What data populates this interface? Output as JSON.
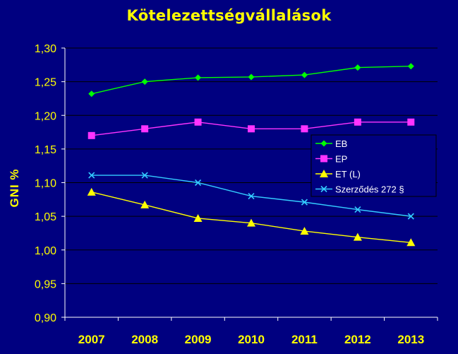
{
  "chart_data": {
    "type": "line",
    "title": "Kötelezettségvállalások",
    "xlabel": "",
    "ylabel": "GNI %",
    "x": [
      "2007",
      "2008",
      "2009",
      "2010",
      "2011",
      "2012",
      "2013"
    ],
    "y_ticks": [
      "0,90",
      "0,95",
      "1,00",
      "1,05",
      "1,10",
      "1,15",
      "1,20",
      "1,25",
      "1,30"
    ],
    "ylim": [
      0.9,
      1.3
    ],
    "grid": true,
    "legend_position": "right",
    "series": [
      {
        "name": "EB",
        "color": "#00ff00",
        "marker": "diamond",
        "values": [
          1.232,
          1.25,
          1.256,
          1.257,
          1.26,
          1.271,
          1.273
        ]
      },
      {
        "name": "EP",
        "color": "#ff33ff",
        "marker": "square",
        "values": [
          1.17,
          1.18,
          1.19,
          1.18,
          1.18,
          1.19,
          1.19
        ]
      },
      {
        "name": "ET (L)",
        "color": "#ffff00",
        "marker": "triangle",
        "values": [
          1.086,
          1.067,
          1.047,
          1.04,
          1.028,
          1.019,
          1.011
        ]
      },
      {
        "name": "Szerződés 272 §",
        "color": "#33ccff",
        "marker": "x",
        "values": [
          1.111,
          1.111,
          1.1,
          1.08,
          1.071,
          1.06,
          1.05
        ]
      }
    ]
  }
}
